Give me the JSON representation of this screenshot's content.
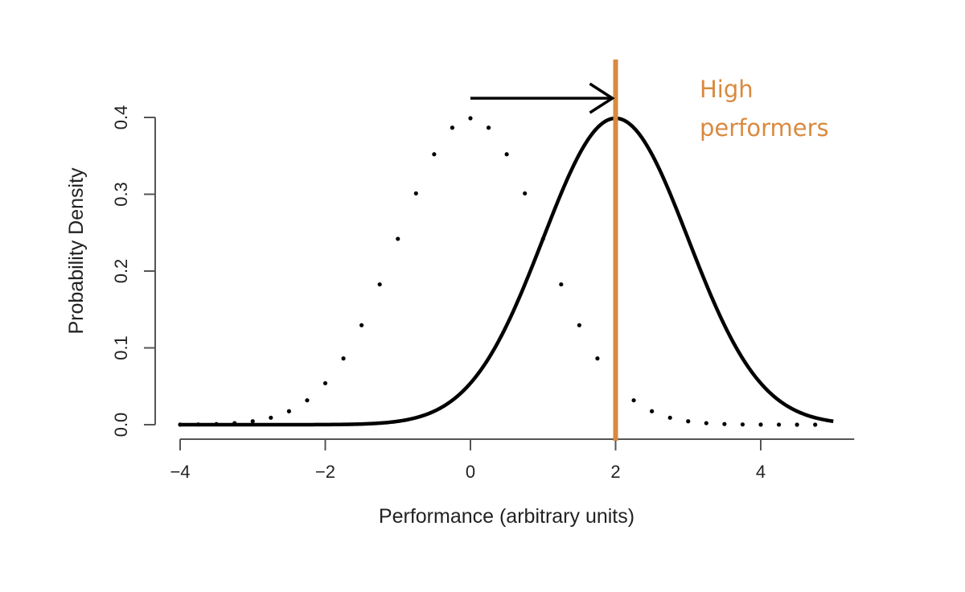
{
  "chart_data": {
    "type": "line",
    "title": "",
    "xlabel": "Performance (arbitrary units)",
    "ylabel": "Probability Density",
    "xlim": [
      -4,
      5
    ],
    "ylim": [
      0,
      0.4
    ],
    "x_ticks": [
      -4,
      -2,
      0,
      2,
      4
    ],
    "x_tick_labels": [
      "−4",
      "−2",
      "0",
      "2",
      "4"
    ],
    "y_ticks": [
      0.0,
      0.1,
      0.2,
      0.3,
      0.4
    ],
    "y_tick_labels": [
      "0.0",
      "0.1",
      "0.2",
      "0.3",
      "0.4"
    ],
    "grid": false,
    "series": [
      {
        "style": "dotted",
        "color": "#000000",
        "distribution": "normal",
        "mean": 0,
        "sd": 1,
        "x": [
          -4,
          -3.5,
          -3,
          -2.5,
          -2,
          -1.5,
          -1,
          -0.5,
          0,
          0.5,
          1,
          1.5,
          2,
          2.5,
          3,
          3.5,
          4,
          4.5,
          5
        ],
        "y": [
          0.0001,
          0.0009,
          0.0044,
          0.0175,
          0.054,
          0.1295,
          0.242,
          0.3521,
          0.3989,
          0.3521,
          0.242,
          0.1295,
          0.054,
          0.0175,
          0.0044,
          0.0009,
          0.0001,
          0.0,
          0.0
        ]
      },
      {
        "style": "solid",
        "color": "#000000",
        "distribution": "normal",
        "mean": 2,
        "sd": 1,
        "x": [
          -4,
          -3.5,
          -3,
          -2.5,
          -2,
          -1.5,
          -1,
          -0.5,
          0,
          0.5,
          1,
          1.5,
          2,
          2.5,
          3,
          3.5,
          4,
          4.5,
          5
        ],
        "y": [
          0.0,
          0.0,
          0.0,
          0.0,
          0.0001,
          0.0009,
          0.0044,
          0.0175,
          0.054,
          0.1295,
          0.242,
          0.3521,
          0.3989,
          0.3521,
          0.242,
          0.1295,
          0.054,
          0.0175,
          0.0044
        ]
      }
    ],
    "annotations": {
      "threshold_line": {
        "x": 2,
        "color": "#d98a3f"
      },
      "shift_arrow": {
        "from_x": 0,
        "to_x": 2,
        "y": 0.425,
        "color": "#000000"
      },
      "label": {
        "lines": [
          "High",
          "performers"
        ],
        "color": "#d98a3f",
        "placement": "top-right"
      }
    }
  }
}
